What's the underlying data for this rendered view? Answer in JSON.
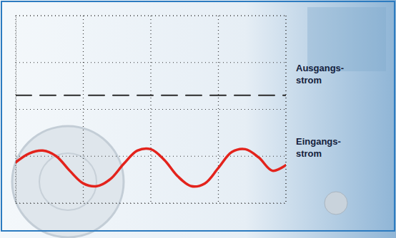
{
  "chart_data": {
    "type": "line",
    "x": [
      0,
      0.2,
      0.4,
      0.6,
      0.8,
      1.0,
      1.2,
      1.4,
      1.6,
      1.8,
      2.0,
      2.2,
      2.4,
      2.6,
      2.8,
      3.0,
      3.2,
      3.4,
      3.6,
      3.8,
      4.0
    ],
    "series": [
      {
        "color": "#2a2a2a",
        "line_style": "dashed",
        "values": [
          0.3,
          0.3,
          0.3,
          0.3,
          0.3,
          0.3,
          0.3,
          0.3,
          0.3,
          0.3,
          0.3,
          0.3,
          0.3,
          0.3,
          0.3,
          0.3,
          0.3,
          0.3,
          0.3,
          0.3,
          0.3
        ]
      },
      {
        "color": "#e3231c",
        "line_style": "solid",
        "values": [
          -1.13,
          -0.94,
          -0.88,
          -1.0,
          -1.31,
          -1.58,
          -1.64,
          -1.49,
          -1.16,
          -0.88,
          -0.85,
          -1.08,
          -1.43,
          -1.64,
          -1.58,
          -1.25,
          -0.91,
          -0.85,
          -1.03,
          -1.31,
          -1.19
        ]
      }
    ],
    "xlim": [
      0,
      4
    ],
    "xticks": [
      0,
      1,
      2,
      3,
      4
    ],
    "ylim": [
      -2,
      2
    ],
    "yticks": [
      -2,
      -1,
      0,
      1,
      2
    ],
    "grid": true,
    "tick_labels": false,
    "annotations": [
      {
        "text": [
          "Ausgangs-",
          "strom"
        ]
      },
      {
        "text": [
          "Eingangs-",
          "strom"
        ]
      }
    ]
  }
}
